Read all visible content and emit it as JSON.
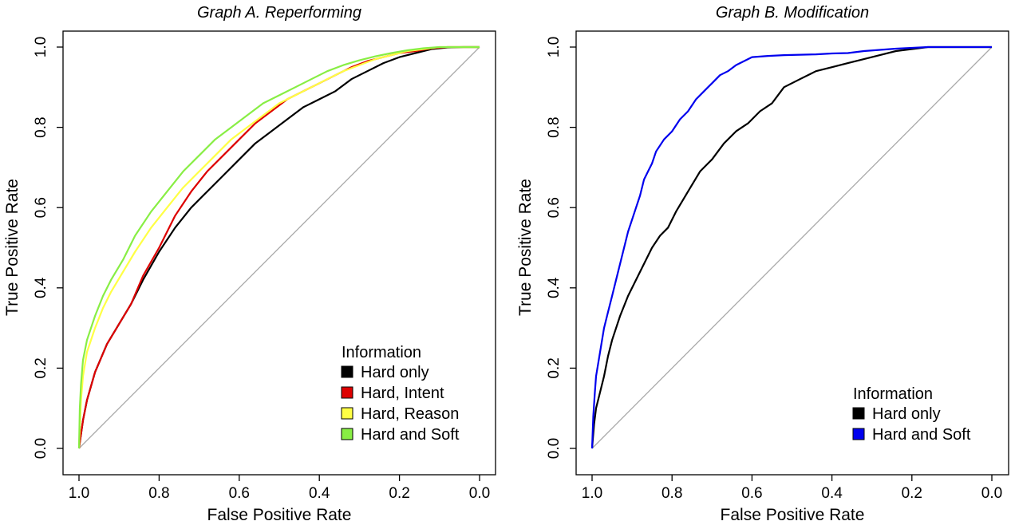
{
  "chart_data": [
    {
      "type": "line",
      "title": "Graph A. Reperforming",
      "xlabel": "False Positive Rate",
      "ylabel": "True Positive Rate",
      "x_reversed": true,
      "xlim": [
        1.0,
        0.0
      ],
      "ylim": [
        0.0,
        1.0
      ],
      "xticks": [
        "1.0",
        "0.8",
        "0.6",
        "0.4",
        "0.2",
        "0.0"
      ],
      "yticks": [
        "0.0",
        "0.2",
        "0.4",
        "0.6",
        "0.8",
        "1.0"
      ],
      "xtick_values": [
        1.0,
        0.8,
        0.6,
        0.4,
        0.2,
        0.0
      ],
      "ytick_values": [
        0.0,
        0.2,
        0.4,
        0.6,
        0.8,
        1.0
      ],
      "grid": false,
      "diagonal_reference": true,
      "legend_title": "Information",
      "legend_position": "bottom-right",
      "series": [
        {
          "name": "Hard only",
          "color": "#000000",
          "x": [
            1.0,
            0.99,
            0.98,
            0.96,
            0.93,
            0.9,
            0.87,
            0.84,
            0.8,
            0.76,
            0.72,
            0.68,
            0.64,
            0.6,
            0.56,
            0.52,
            0.48,
            0.44,
            0.4,
            0.36,
            0.32,
            0.28,
            0.24,
            0.2,
            0.16,
            0.12,
            0.08,
            0.04,
            0.0
          ],
          "y": [
            0.0,
            0.07,
            0.12,
            0.19,
            0.26,
            0.31,
            0.36,
            0.42,
            0.49,
            0.55,
            0.6,
            0.64,
            0.68,
            0.72,
            0.76,
            0.79,
            0.82,
            0.85,
            0.87,
            0.89,
            0.92,
            0.94,
            0.96,
            0.975,
            0.985,
            0.995,
            0.999,
            1.0,
            1.0
          ]
        },
        {
          "name": "Hard, Intent",
          "color": "#dd0000",
          "x": [
            1.0,
            0.99,
            0.98,
            0.96,
            0.93,
            0.9,
            0.87,
            0.84,
            0.8,
            0.76,
            0.72,
            0.68,
            0.64,
            0.6,
            0.56,
            0.52,
            0.48,
            0.44,
            0.4,
            0.36,
            0.32,
            0.28,
            0.24,
            0.2,
            0.16,
            0.12,
            0.08,
            0.04,
            0.0
          ],
          "y": [
            0.0,
            0.07,
            0.12,
            0.19,
            0.26,
            0.31,
            0.36,
            0.43,
            0.5,
            0.58,
            0.64,
            0.69,
            0.73,
            0.77,
            0.81,
            0.84,
            0.87,
            0.89,
            0.91,
            0.93,
            0.95,
            0.965,
            0.975,
            0.985,
            0.99,
            0.997,
            1.0,
            1.0,
            1.0
          ]
        },
        {
          "name": "Hard, Reason",
          "color": "#ffff44",
          "x": [
            1.0,
            0.995,
            0.99,
            0.98,
            0.96,
            0.94,
            0.92,
            0.89,
            0.86,
            0.82,
            0.78,
            0.74,
            0.7,
            0.66,
            0.62,
            0.58,
            0.54,
            0.5,
            0.46,
            0.42,
            0.38,
            0.34,
            0.3,
            0.26,
            0.22,
            0.18,
            0.14,
            0.1,
            0.06,
            0.0
          ],
          "y": [
            0.0,
            0.12,
            0.18,
            0.24,
            0.3,
            0.35,
            0.39,
            0.44,
            0.49,
            0.55,
            0.6,
            0.65,
            0.69,
            0.73,
            0.77,
            0.8,
            0.83,
            0.86,
            0.88,
            0.9,
            0.92,
            0.94,
            0.955,
            0.97,
            0.98,
            0.99,
            0.995,
            1.0,
            1.0,
            1.0
          ]
        },
        {
          "name": "Hard and Soft",
          "color": "#88ee44",
          "x": [
            1.0,
            0.998,
            0.995,
            0.99,
            0.98,
            0.96,
            0.94,
            0.92,
            0.89,
            0.86,
            0.82,
            0.78,
            0.74,
            0.7,
            0.66,
            0.62,
            0.58,
            0.54,
            0.5,
            0.46,
            0.42,
            0.38,
            0.34,
            0.3,
            0.26,
            0.22,
            0.18,
            0.14,
            0.1,
            0.06,
            0.0
          ],
          "y": [
            0.0,
            0.1,
            0.16,
            0.22,
            0.27,
            0.33,
            0.38,
            0.42,
            0.47,
            0.53,
            0.59,
            0.64,
            0.69,
            0.73,
            0.77,
            0.8,
            0.83,
            0.86,
            0.88,
            0.9,
            0.92,
            0.94,
            0.955,
            0.967,
            0.977,
            0.985,
            0.992,
            0.997,
            1.0,
            1.0,
            1.0
          ]
        }
      ]
    },
    {
      "type": "line",
      "title": "Graph B. Modification",
      "xlabel": "False Positive Rate",
      "ylabel": "True Positive Rate",
      "x_reversed": true,
      "xlim": [
        1.0,
        0.0
      ],
      "ylim": [
        0.0,
        1.0
      ],
      "xticks": [
        "1.0",
        "0.8",
        "0.6",
        "0.4",
        "0.2",
        "0.0"
      ],
      "yticks": [
        "0.0",
        "0.2",
        "0.4",
        "0.6",
        "0.8",
        "1.0"
      ],
      "xtick_values": [
        1.0,
        0.8,
        0.6,
        0.4,
        0.2,
        0.0
      ],
      "ytick_values": [
        0.0,
        0.2,
        0.4,
        0.6,
        0.8,
        1.0
      ],
      "grid": false,
      "diagonal_reference": true,
      "legend_title": "Information",
      "legend_position": "bottom-right",
      "series": [
        {
          "name": "Hard only",
          "color": "#000000",
          "x": [
            1.0,
            0.995,
            0.99,
            0.98,
            0.97,
            0.96,
            0.95,
            0.93,
            0.91,
            0.89,
            0.87,
            0.85,
            0.83,
            0.81,
            0.79,
            0.76,
            0.73,
            0.7,
            0.67,
            0.64,
            0.61,
            0.58,
            0.55,
            0.52,
            0.48,
            0.44,
            0.4,
            0.36,
            0.32,
            0.28,
            0.24,
            0.2,
            0.16,
            0.12,
            0.08,
            0.04,
            0.0
          ],
          "y": [
            0.0,
            0.06,
            0.1,
            0.14,
            0.18,
            0.23,
            0.27,
            0.33,
            0.38,
            0.42,
            0.46,
            0.5,
            0.53,
            0.55,
            0.59,
            0.64,
            0.69,
            0.72,
            0.76,
            0.79,
            0.81,
            0.84,
            0.86,
            0.9,
            0.92,
            0.94,
            0.95,
            0.96,
            0.97,
            0.98,
            0.99,
            0.995,
            1.0,
            1.0,
            1.0,
            1.0,
            1.0
          ]
        },
        {
          "name": "Hard and Soft",
          "color": "#0000ee",
          "x": [
            1.0,
            0.997,
            0.993,
            0.99,
            0.98,
            0.97,
            0.96,
            0.95,
            0.94,
            0.93,
            0.92,
            0.91,
            0.9,
            0.89,
            0.88,
            0.87,
            0.86,
            0.85,
            0.84,
            0.82,
            0.8,
            0.78,
            0.76,
            0.74,
            0.72,
            0.7,
            0.68,
            0.66,
            0.64,
            0.62,
            0.6,
            0.56,
            0.52,
            0.48,
            0.44,
            0.4,
            0.36,
            0.32,
            0.28,
            0.24,
            0.2,
            0.16,
            0.12,
            0.08,
            0.04,
            0.0
          ],
          "y": [
            0.0,
            0.08,
            0.14,
            0.18,
            0.24,
            0.3,
            0.34,
            0.38,
            0.42,
            0.46,
            0.5,
            0.54,
            0.57,
            0.6,
            0.63,
            0.67,
            0.69,
            0.71,
            0.74,
            0.77,
            0.79,
            0.82,
            0.84,
            0.87,
            0.89,
            0.91,
            0.93,
            0.94,
            0.955,
            0.965,
            0.975,
            0.978,
            0.98,
            0.981,
            0.982,
            0.984,
            0.985,
            0.99,
            0.993,
            0.996,
            0.998,
            1.0,
            1.0,
            1.0,
            1.0,
            1.0
          ]
        }
      ]
    }
  ]
}
